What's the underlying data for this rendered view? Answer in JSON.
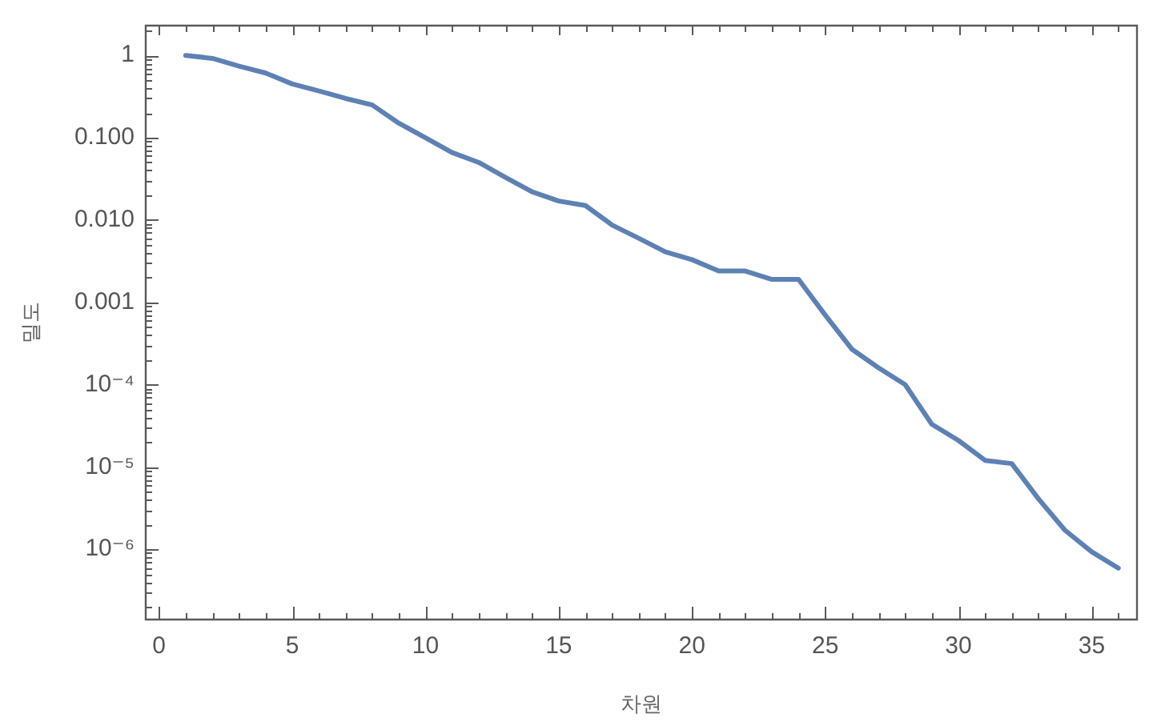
{
  "chart_data": {
    "type": "line",
    "xlabel": "차원",
    "ylabel": "밀도",
    "log": "y",
    "marker": "none",
    "color": "#5e81b5",
    "x": [
      1,
      2,
      3,
      4,
      5,
      6,
      7,
      8,
      9,
      10,
      11,
      12,
      13,
      14,
      15,
      16,
      17,
      18,
      19,
      20,
      21,
      22,
      23,
      24,
      25,
      26,
      27,
      28,
      29,
      30,
      31,
      32,
      33,
      34,
      35,
      36
    ],
    "values": [
      1.0,
      0.92,
      0.74,
      0.61,
      0.45,
      0.37,
      0.3,
      0.25,
      0.15,
      0.1,
      0.066,
      0.05,
      0.033,
      0.022,
      0.017,
      0.015,
      0.0087,
      0.006,
      0.0041,
      0.0033,
      0.0024,
      0.0024,
      0.0019,
      0.0019,
      0.0007,
      0.00027,
      0.00016,
      0.0001,
      3.3e-05,
      2.1e-05,
      1.2e-05,
      1.1e-05,
      4.1e-06,
      1.7e-06,
      9.3e-07,
      5.9e-07
    ],
    "xlim": [
      -0.5,
      36.7
    ],
    "xticks": [
      0,
      {
        "value": 1,
        "label": null
      },
      {
        "value": 2,
        "label": null
      },
      {
        "value": 3,
        "label": null
      },
      {
        "value": 4,
        "label": null
      },
      5,
      {
        "value": 6,
        "label": null
      },
      {
        "value": 7,
        "label": null
      },
      {
        "value": 8,
        "label": null
      },
      {
        "value": 9,
        "label": null
      },
      10,
      {
        "value": 11,
        "label": null
      },
      {
        "value": 12,
        "label": null
      },
      {
        "value": 13,
        "label": null
      },
      {
        "value": 14,
        "label": null
      },
      15,
      {
        "value": 16,
        "label": null
      },
      {
        "value": 17,
        "label": null
      },
      {
        "value": 18,
        "label": null
      },
      {
        "value": 19,
        "label": null
      },
      20,
      {
        "value": 21,
        "label": null
      },
      {
        "value": 22,
        "label": null
      },
      {
        "value": 23,
        "label": null
      },
      {
        "value": 24,
        "label": null
      },
      25,
      {
        "value": 26,
        "label": null
      },
      {
        "value": 27,
        "label": null
      },
      {
        "value": 28,
        "label": null
      },
      {
        "value": 29,
        "label": null
      },
      30,
      {
        "value": 31,
        "label": null
      },
      {
        "value": 32,
        "label": null
      },
      {
        "value": 33,
        "label": null
      },
      {
        "value": 34,
        "label": null
      },
      35,
      {
        "value": 36,
        "label": null
      }
    ],
    "ylim": [
      1.4e-07,
      2.3
    ],
    "yticks": [
      {
        "value": 2e-07,
        "label": null
      },
      {
        "value": 3e-07,
        "label": null
      },
      {
        "value": 4e-07,
        "label": null
      },
      {
        "value": 5e-07,
        "label": null
      },
      {
        "value": 6e-07,
        "label": null
      },
      {
        "value": 7e-07,
        "label": null
      },
      {
        "value": 8e-07,
        "label": null
      },
      {
        "value": 9e-07,
        "label": null
      },
      {
        "value": 1e-06,
        "label": "10⁻⁶"
      },
      {
        "value": 2e-06,
        "label": null
      },
      {
        "value": 3e-06,
        "label": null
      },
      {
        "value": 4e-06,
        "label": null
      },
      {
        "value": 5e-06,
        "label": null
      },
      {
        "value": 6e-06,
        "label": null
      },
      {
        "value": 7e-06,
        "label": null
      },
      {
        "value": 8e-06,
        "label": null
      },
      {
        "value": 9e-06,
        "label": null
      },
      {
        "value": 1e-05,
        "label": "10⁻⁵"
      },
      {
        "value": 2e-05,
        "label": null
      },
      {
        "value": 3e-05,
        "label": null
      },
      {
        "value": 4e-05,
        "label": null
      },
      {
        "value": 5e-05,
        "label": null
      },
      {
        "value": 6e-05,
        "label": null
      },
      {
        "value": 7e-05,
        "label": null
      },
      {
        "value": 8e-05,
        "label": null
      },
      {
        "value": 9e-05,
        "label": null
      },
      {
        "value": 0.0001,
        "label": "10⁻⁴"
      },
      {
        "value": 0.0002,
        "label": null
      },
      {
        "value": 0.0003,
        "label": null
      },
      {
        "value": 0.0004,
        "label": null
      },
      {
        "value": 0.0005,
        "label": null
      },
      {
        "value": 0.0006,
        "label": null
      },
      {
        "value": 0.0007,
        "label": null
      },
      {
        "value": 0.0008,
        "label": null
      },
      {
        "value": 0.0009,
        "label": null
      },
      0.001,
      {
        "value": 0.002,
        "label": null
      },
      {
        "value": 0.003,
        "label": null
      },
      {
        "value": 0.004,
        "label": null
      },
      {
        "value": 0.005,
        "label": null
      },
      {
        "value": 0.006,
        "label": null
      },
      {
        "value": 0.007,
        "label": null
      },
      {
        "value": 0.008,
        "label": null
      },
      {
        "value": 0.009,
        "label": null
      },
      {
        "value": 0.01,
        "label": "0.010"
      },
      {
        "value": 0.02,
        "label": null
      },
      {
        "value": 0.03,
        "label": null
      },
      {
        "value": 0.04,
        "label": null
      },
      {
        "value": 0.05,
        "label": null
      },
      {
        "value": 0.06,
        "label": null
      },
      {
        "value": 0.07,
        "label": null
      },
      {
        "value": 0.08,
        "label": null
      },
      {
        "value": 0.09,
        "label": null
      },
      {
        "value": 0.1,
        "label": "0.100"
      },
      {
        "value": 0.2,
        "label": null
      },
      {
        "value": 0.3,
        "label": null
      },
      {
        "value": 0.4,
        "label": null
      },
      {
        "value": 0.5,
        "label": null
      },
      {
        "value": 0.6,
        "label": null
      },
      {
        "value": 0.7,
        "label": null
      },
      {
        "value": 0.8,
        "label": null
      },
      {
        "value": 0.9,
        "label": null
      },
      1,
      {
        "value": 2,
        "label": null
      }
    ]
  }
}
